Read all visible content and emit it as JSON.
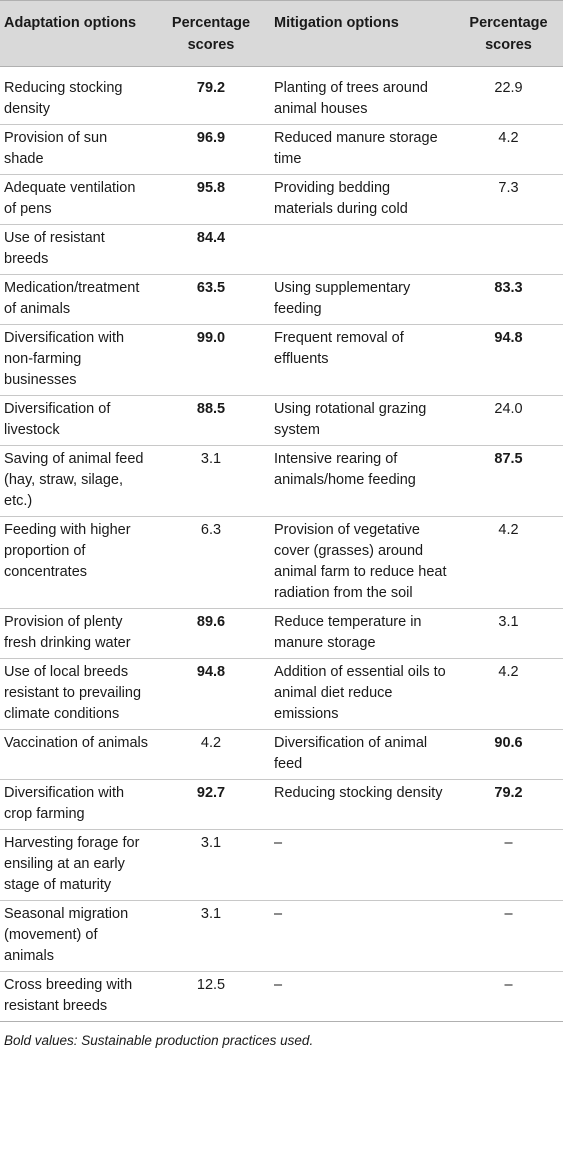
{
  "table": {
    "headers": {
      "adaptation": "Adaptation options",
      "adaptation_score": "Percentage scores",
      "mitigation": "Mitigation options",
      "mitigation_score": "Percentage scores"
    },
    "rows": [
      {
        "adaptation": "Reducing stocking density",
        "a_score": "79.2",
        "a_bold": true,
        "mitigation": "Planting of trees around animal houses",
        "m_score": "22.9",
        "m_bold": false
      },
      {
        "adaptation": "Provision of sun shade",
        "a_score": "96.9",
        "a_bold": true,
        "mitigation": "Reduced manure storage time",
        "m_score": "4.2",
        "m_bold": false
      },
      {
        "adaptation": "Adequate ventilation of pens",
        "a_score": "95.8",
        "a_bold": true,
        "mitigation": "Providing bedding materials during cold",
        "m_score": "7.3",
        "m_bold": false
      },
      {
        "adaptation": "Use of resistant breeds",
        "a_score": "84.4",
        "a_bold": true,
        "mitigation": "",
        "m_score": "",
        "m_bold": false
      },
      {
        "adaptation": "Medication/treatment of animals",
        "a_score": "63.5",
        "a_bold": true,
        "mitigation": "Using supplementary feeding",
        "m_score": "83.3",
        "m_bold": true
      },
      {
        "adaptation": "Diversification with non-farming businesses",
        "a_score": "99.0",
        "a_bold": true,
        "mitigation": "Frequent removal of effluents",
        "m_score": "94.8",
        "m_bold": true
      },
      {
        "adaptation": "Diversification of livestock",
        "a_score": "88.5",
        "a_bold": true,
        "mitigation": "Using rotational grazing system",
        "m_score": "24.0",
        "m_bold": false
      },
      {
        "adaptation": "Saving of animal feed (hay, straw, silage, etc.)",
        "a_score": "3.1",
        "a_bold": false,
        "mitigation": "Intensive rearing of animals/home feeding",
        "m_score": "87.5",
        "m_bold": true
      },
      {
        "adaptation": "Feeding with higher proportion of concentrates",
        "a_score": "6.3",
        "a_bold": false,
        "mitigation": "Provision of vegetative cover (grasses) around animal farm to reduce heat radiation from the soil",
        "m_score": "4.2",
        "m_bold": false
      },
      {
        "adaptation": "Provision of plenty fresh drinking water",
        "a_score": "89.6",
        "a_bold": true,
        "mitigation": "Reduce temperature in manure storage",
        "m_score": "3.1",
        "m_bold": false
      },
      {
        "adaptation": "Use of local breeds resistant to prevailing climate conditions",
        "a_score": "94.8",
        "a_bold": true,
        "mitigation": "Addition of essential oils to animal diet reduce emissions",
        "m_score": "4.2",
        "m_bold": false
      },
      {
        "adaptation": "Vaccination of animals",
        "a_score": "4.2",
        "a_bold": false,
        "mitigation": "Diversification of animal feed",
        "m_score": "90.6",
        "m_bold": true
      },
      {
        "adaptation": "Diversification with crop farming",
        "a_score": "92.7",
        "a_bold": true,
        "mitigation": "Reducing stocking density",
        "m_score": "79.2",
        "m_bold": true
      },
      {
        "adaptation": "Harvesting forage for ensiling at an early stage of maturity",
        "a_score": "3.1",
        "a_bold": false,
        "mitigation": "–",
        "m_score": "–",
        "m_bold": false
      },
      {
        "adaptation": "Seasonal migration (movement) of animals",
        "a_score": "3.1",
        "a_bold": false,
        "mitigation": "–",
        "m_score": "–",
        "m_bold": false
      },
      {
        "adaptation": "Cross breeding with resistant breeds",
        "a_score": "12.5",
        "a_bold": false,
        "mitigation": "–",
        "m_score": "–",
        "m_bold": false
      }
    ]
  },
  "footnote": "Bold values: Sustainable production practices used."
}
